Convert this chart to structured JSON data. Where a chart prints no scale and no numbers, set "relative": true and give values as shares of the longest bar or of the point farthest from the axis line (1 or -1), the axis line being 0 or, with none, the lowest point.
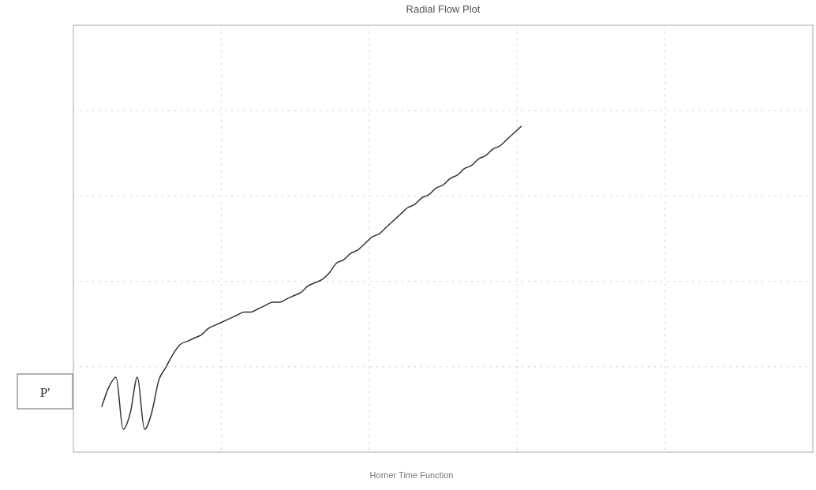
{
  "chart_data": {
    "type": "line",
    "title": "Radial Flow Plot",
    "xlabel": "Horner Time Function",
    "annotations": [
      "P'"
    ],
    "relative": true,
    "grid": true,
    "marker": "none",
    "line_style": "solid",
    "categories": [
      null,
      null,
      null,
      null,
      null,
      null,
      null,
      null,
      null,
      null,
      null,
      null,
      null,
      null,
      null,
      null,
      null,
      null,
      null,
      null,
      null,
      null,
      null,
      null,
      null,
      null,
      null,
      null,
      null,
      null,
      null,
      null,
      null,
      null,
      null,
      null,
      null,
      null,
      null,
      null,
      null,
      null,
      null,
      null,
      null,
      null,
      null,
      null,
      null,
      null,
      null,
      null,
      null,
      null,
      null,
      null,
      null,
      null,
      null,
      null,
      null,
      null,
      null,
      null,
      null,
      null,
      null,
      null,
      null,
      null,
      null,
      null,
      null,
      null,
      null,
      null,
      null,
      null,
      null,
      null,
      null,
      null,
      null,
      null,
      null,
      null,
      null,
      null,
      null,
      null,
      null,
      null,
      null,
      null,
      null,
      null,
      null,
      null,
      null,
      null,
      null,
      null,
      null,
      null,
      null
    ],
    "series": [
      {
        "color": "#333333",
        "values": [
          null,
          null,
          null,
          null,
          0.14,
          0.2,
          0.23,
          0.07,
          0.12,
          0.23,
          0.07,
          0.12,
          0.22,
          0.26,
          0.3,
          0.33,
          0.34,
          0.35,
          0.36,
          0.38,
          0.39,
          0.4,
          0.41,
          0.42,
          0.43,
          0.43,
          0.44,
          0.45,
          0.46,
          0.46,
          0.47,
          0.48,
          0.49,
          0.51,
          0.52,
          0.53,
          0.55,
          0.58,
          0.59,
          0.61,
          0.62,
          0.64,
          0.66,
          0.67,
          0.69,
          0.71,
          0.73,
          0.75,
          0.76,
          0.78,
          0.79,
          0.81,
          0.82,
          0.84,
          0.85,
          0.87,
          0.88,
          0.9,
          0.91,
          0.93,
          0.94,
          0.96,
          0.98,
          1.0,
          null,
          null,
          null,
          null,
          null,
          null,
          null,
          null,
          null,
          null,
          null,
          null,
          null,
          null,
          null,
          null,
          null,
          null,
          null,
          null,
          null,
          null,
          null,
          null,
          null,
          null,
          null,
          null,
          null,
          null,
          null,
          null,
          null,
          null,
          null,
          null,
          null,
          null,
          null,
          null,
          null
        ]
      }
    ]
  }
}
